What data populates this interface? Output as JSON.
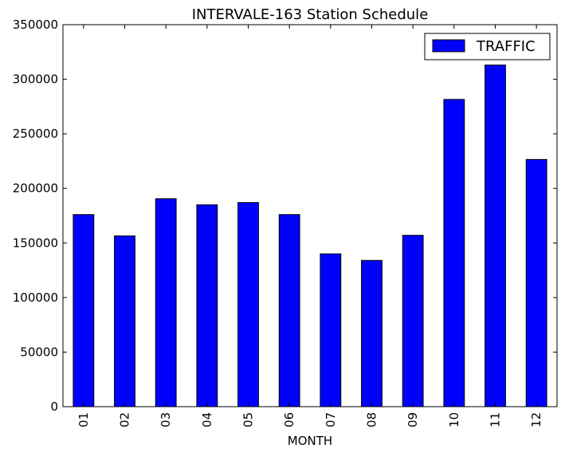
{
  "chart_data": {
    "type": "bar",
    "title": "INTERVALE-163 Station Schedule",
    "xlabel": "MONTH",
    "ylabel": "",
    "categories": [
      "01",
      "02",
      "03",
      "04",
      "05",
      "06",
      "07",
      "08",
      "09",
      "10",
      "11",
      "12"
    ],
    "series": [
      {
        "name": "TRAFFIC",
        "color": "#0000ff",
        "values": [
          176000,
          156500,
          190500,
          185000,
          187000,
          176000,
          140000,
          134000,
          157000,
          281500,
          313000,
          226500
        ]
      }
    ],
    "ylim": [
      0,
      350000
    ],
    "yticks": [
      0,
      50000,
      100000,
      150000,
      200000,
      250000,
      300000,
      350000
    ],
    "ytick_labels": [
      "0",
      "50000",
      "100000",
      "150000",
      "200000",
      "250000",
      "300000",
      "350000"
    ],
    "grid": false,
    "legend_position": "top-right"
  }
}
